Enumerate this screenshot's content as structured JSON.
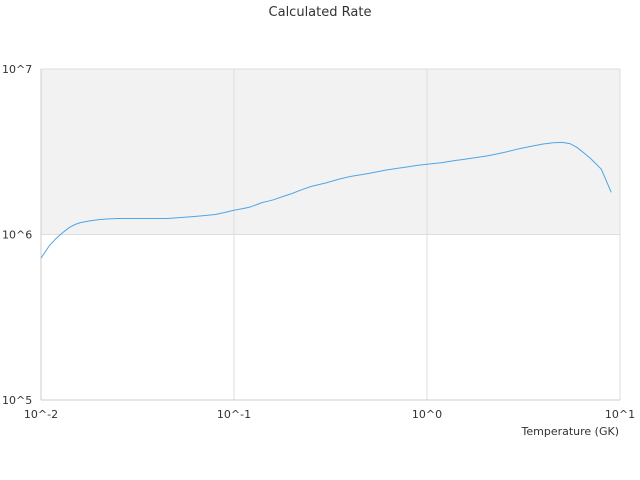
{
  "chart_data": {
    "type": "line",
    "title": "Calculated Rate",
    "xlabel": "Temperature (GK)",
    "ylabel": "",
    "x_scale": "log",
    "y_scale": "log",
    "xlim": [
      0.01,
      10
    ],
    "ylim": [
      100000,
      10000000
    ],
    "x_tick_labels": [
      "10^-2",
      "10^-1",
      "10^0",
      "10^1"
    ],
    "y_tick_labels": [
      "10^5",
      "10^6",
      "10^7"
    ],
    "grid": true,
    "legend": "none",
    "colors": {
      "line": "#4da6e8",
      "band": "#f2f2f2",
      "grid": "#dddddd",
      "axis": "#cccccc"
    },
    "series": [
      {
        "x": [
          0.01,
          0.011,
          0.012,
          0.013,
          0.014,
          0.015,
          0.016,
          0.018,
          0.02,
          0.022,
          0.025,
          0.03,
          0.035,
          0.04,
          0.045,
          0.05,
          0.06,
          0.07,
          0.08,
          0.09,
          0.1,
          0.11,
          0.12,
          0.13,
          0.14,
          0.15,
          0.16,
          0.18,
          0.2,
          0.22,
          0.25,
          0.3,
          0.35,
          0.4,
          0.45,
          0.5,
          0.6,
          0.7,
          0.8,
          0.9,
          1.0,
          1.1,
          1.2,
          1.3,
          1.4,
          1.5,
          1.6,
          1.8,
          2.0,
          2.2,
          2.5,
          3.0,
          3.5,
          4.0,
          4.5,
          5.0,
          5.5,
          6.0,
          7.0,
          8.0,
          9.0
        ],
        "y": [
          720000,
          850000,
          950000,
          1030000,
          1100000,
          1150000,
          1180000,
          1210000,
          1230000,
          1240000,
          1250000,
          1250000,
          1250000,
          1250000,
          1250000,
          1260000,
          1280000,
          1300000,
          1320000,
          1360000,
          1400000,
          1430000,
          1460000,
          1510000,
          1560000,
          1590000,
          1620000,
          1700000,
          1770000,
          1850000,
          1950000,
          2050000,
          2160000,
          2240000,
          2290000,
          2340000,
          2440000,
          2510000,
          2570000,
          2620000,
          2660000,
          2690000,
          2720000,
          2760000,
          2800000,
          2830000,
          2860000,
          2920000,
          2970000,
          3030000,
          3130000,
          3300000,
          3420000,
          3520000,
          3580000,
          3600000,
          3540000,
          3350000,
          2900000,
          2480000,
          1800000
        ]
      }
    ]
  }
}
